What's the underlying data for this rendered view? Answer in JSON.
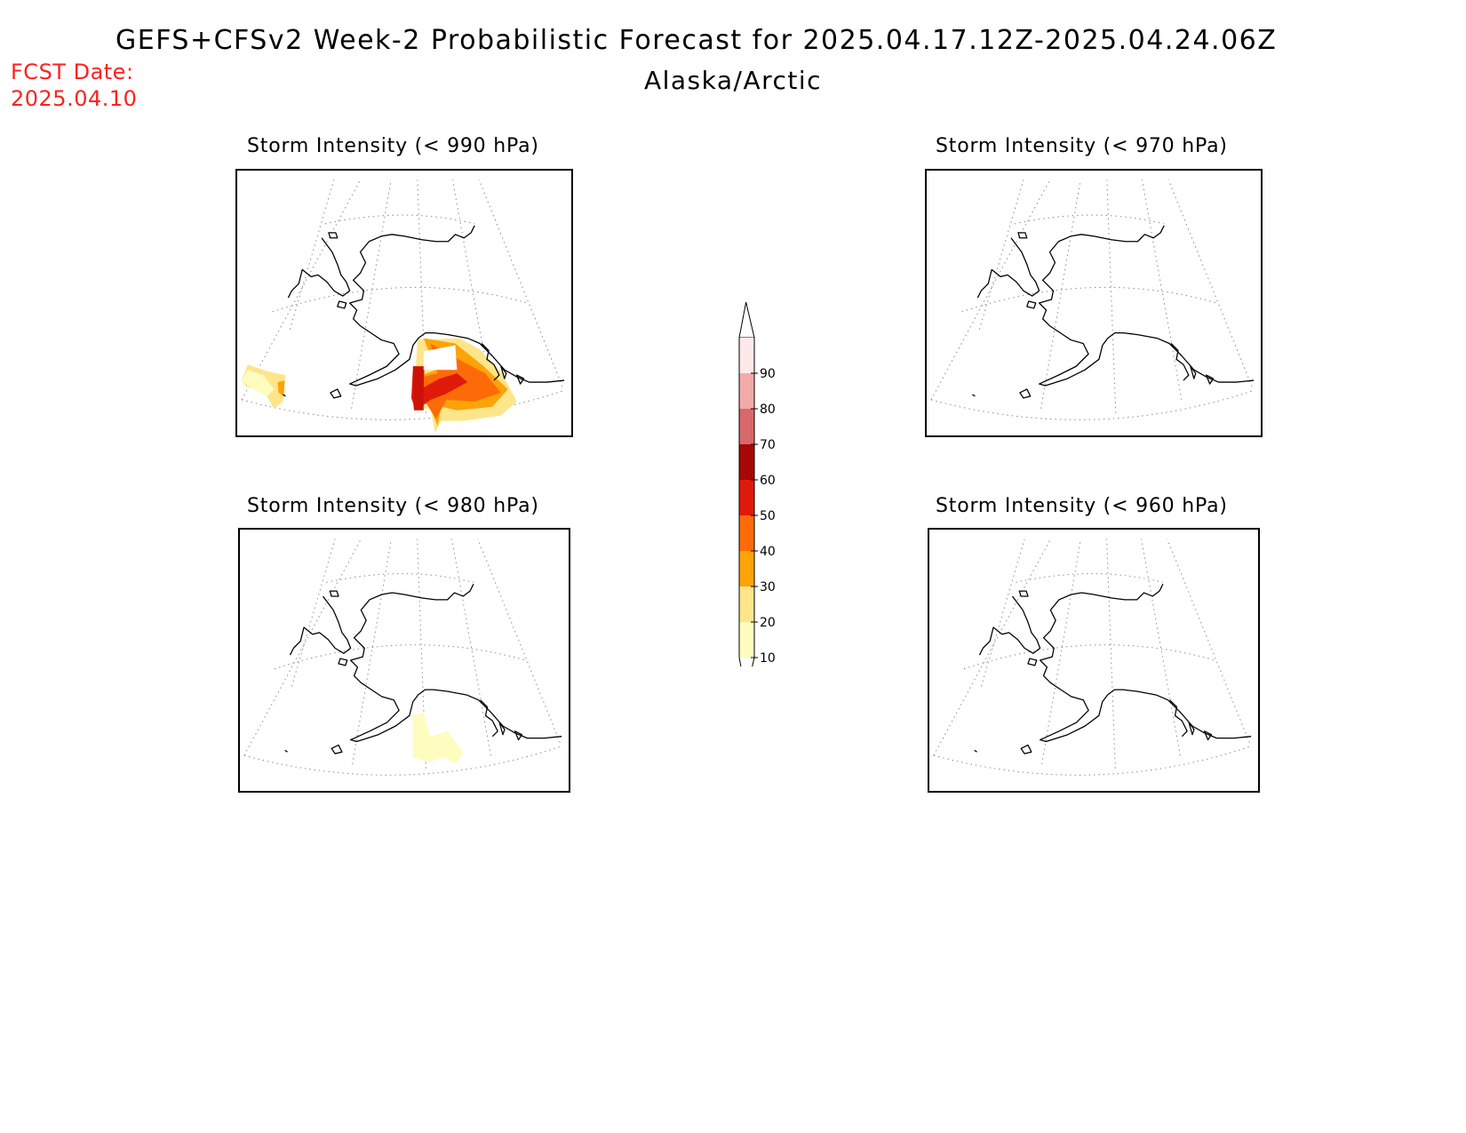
{
  "header": {
    "title": "GEFS+CFSv2 Week-2 Probabilistic Forecast for 2025.04.17.12Z-2025.04.24.06Z",
    "subtitle": "Alaska/Arctic",
    "fcst_label": "FCST Date:",
    "fcst_date": "2025.04.10"
  },
  "panels": [
    {
      "title": "Storm Intensity (< 990 hPa)",
      "shading": "strong"
    },
    {
      "title": "Storm Intensity (< 970 hPa)",
      "shading": "none"
    },
    {
      "title": "Storm Intensity (< 980 hPa)",
      "shading": "weak"
    },
    {
      "title": "Storm Intensity (< 960 hPa)",
      "shading": "none"
    }
  ],
  "colorbar": {
    "levels": [
      "10",
      "20",
      "30",
      "40",
      "50",
      "60",
      "70",
      "80",
      "90"
    ],
    "colors": [
      "#fffcbf",
      "#fde58a",
      "#fca308",
      "#fd6b08",
      "#e01a0b",
      "#a60806",
      "#d9686a",
      "#f2aaa9",
      "#fde9e9"
    ]
  }
}
